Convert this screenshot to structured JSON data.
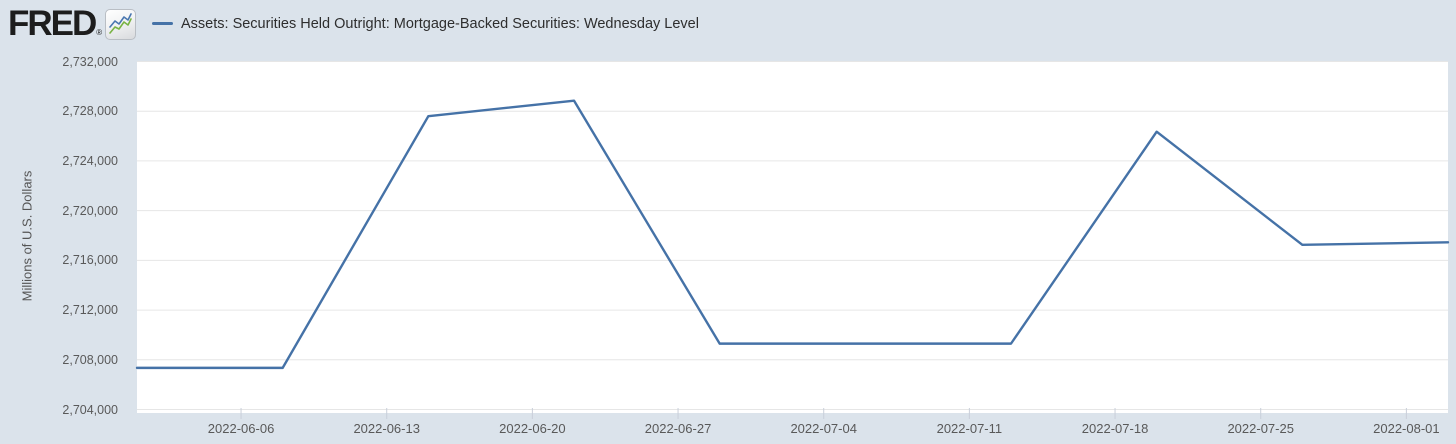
{
  "header": {
    "logo_text": "FRED",
    "logo_registered": "®"
  },
  "legend": {
    "series_label": "Assets: Securities Held Outright: Mortgage-Backed Securities: Wednesday Level"
  },
  "chart_data": {
    "type": "line",
    "title": "Assets: Securities Held Outright: Mortgage-Backed Securities: Wednesday Level",
    "xlabel": "",
    "ylabel": "Millions of U.S. Dollars",
    "x": [
      "2022-06-01",
      "2022-06-08",
      "2022-06-15",
      "2022-06-22",
      "2022-06-29",
      "2022-07-06",
      "2022-07-13",
      "2022-07-20",
      "2022-07-27",
      "2022-08-03"
    ],
    "series": [
      {
        "name": "Assets: Securities Held Outright: Mortgage-Backed Securities: Wednesday Level",
        "values": [
          2707350,
          2707350,
          2727600,
          2728850,
          2709300,
          2709300,
          2709300,
          2726350,
          2717250,
          2717450
        ]
      }
    ],
    "ylim": [
      2704000,
      2732000
    ],
    "ytick_interval": 4000,
    "xticks": [
      "2022-06-06",
      "2022-06-13",
      "2022-06-20",
      "2022-06-27",
      "2022-07-04",
      "2022-07-11",
      "2022-07-18",
      "2022-07-25",
      "2022-08-01"
    ],
    "grid": true,
    "legend_position": "top-left"
  },
  "colors": {
    "background": "#dbe3eb",
    "plot_background": "#ffffff",
    "line": "#4572a7",
    "gridline": "#e6e6e6",
    "tick_mark": "#c9cfda",
    "tick_label": "#595959",
    "title_text": "#2e2e2e",
    "icon_blue": "#4a77b0",
    "icon_green": "#79b344"
  }
}
